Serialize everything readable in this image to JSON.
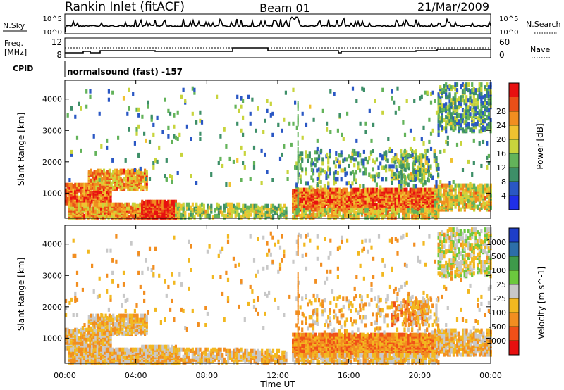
{
  "header": {
    "station": "Rankin Inlet (fitACF)",
    "beam": "Beam 01",
    "date": "21/Mar/2009"
  },
  "noise_panel": {
    "left_label": "N.Sky",
    "left_ticks": [
      "10^5",
      "10^0"
    ],
    "right_ticks": [
      "10^5",
      "10^0"
    ],
    "right_label": "N.Search"
  },
  "freq_panel": {
    "left_label_line1": "Freq.",
    "left_label_line2": "[MHz]",
    "left_ticks": [
      "12",
      "8"
    ],
    "right_ticks": [
      "60",
      "0"
    ],
    "right_label": "Nave"
  },
  "cpid_panel": {
    "label": "CPID",
    "text": "normalsound (fast) -157"
  },
  "colors": {
    "power": [
      "#1f2ee8",
      "#2a57c4",
      "#3d8f68",
      "#63b35a",
      "#c8d43c",
      "#f0c230",
      "#f08e20",
      "#ea4f18",
      "#e81010"
    ],
    "velocity": [
      "#1e3ec8",
      "#2c6ea8",
      "#3e9a4a",
      "#6cc83e",
      "#c8c8c8",
      "#f2b820",
      "#f28e20",
      "#f05018",
      "#e81010"
    ]
  },
  "chart_data": [
    {
      "type": "heatmap",
      "title": "",
      "xlabel": "",
      "ylabel": "Slant Range [km]",
      "x_ticks": [
        "00:00",
        "04:00",
        "08:00",
        "12:00",
        "16:00",
        "20:00",
        "00:00"
      ],
      "y_ticks": [
        "1000",
        "2000",
        "3000",
        "4000"
      ],
      "ylim": [
        200,
        4600
      ],
      "colorbar": {
        "label": "Power [dB]",
        "ticks": [
          "4",
          "8",
          "12",
          "16",
          "20",
          "24",
          "28"
        ],
        "range": [
          0,
          32
        ]
      },
      "note": "ionospheric backscatter power, time vs slant range"
    },
    {
      "type": "heatmap",
      "title": "",
      "xlabel": "Time UT",
      "ylabel": "Slant Range [km]",
      "x_ticks": [
        "00:00",
        "04:00",
        "08:00",
        "12:00",
        "16:00",
        "20:00",
        "00:00"
      ],
      "y_ticks": [
        "1000",
        "2000",
        "3000",
        "4000"
      ],
      "ylim": [
        200,
        4600
      ],
      "colorbar": {
        "label": "Velocity [m s^-1]",
        "ticks": [
          "1000",
          "500",
          "100",
          "25",
          "-25",
          "-100",
          "-500",
          "-1000"
        ]
      },
      "note": "Doppler velocity, time vs slant range"
    }
  ]
}
